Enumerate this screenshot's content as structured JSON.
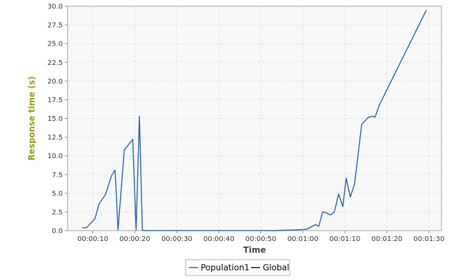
{
  "chart_data": {
    "type": "line",
    "title": "",
    "xlabel": "Time",
    "ylabel": "Response time (s)",
    "x_unit": "seconds",
    "xlim": [
      4,
      93
    ],
    "ylim": [
      0,
      30
    ],
    "y_ticks": [
      "0.0",
      "2.5",
      "5.0",
      "7.5",
      "10.0",
      "12.5",
      "15.0",
      "17.5",
      "20.0",
      "22.5",
      "25.0",
      "27.5",
      "30.0"
    ],
    "x_ticks": [
      {
        "value": 10,
        "label": "00:00:10"
      },
      {
        "value": 20,
        "label": "00:00:20"
      },
      {
        "value": 30,
        "label": "00:00:30"
      },
      {
        "value": 40,
        "label": "00:00:40"
      },
      {
        "value": 50,
        "label": "00:00:50"
      },
      {
        "value": 60,
        "label": "00:01:00"
      },
      {
        "value": 70,
        "label": "00:01:10"
      },
      {
        "value": 80,
        "label": "00:01:20"
      },
      {
        "value": 90,
        "label": "00:01:30"
      }
    ],
    "grid": true,
    "legend_position": "bottom-center",
    "series": [
      {
        "name": "Population1",
        "color": "#1f5fa8",
        "points": [
          [
            7.5,
            0.4
          ],
          [
            8.5,
            0.4
          ],
          [
            10.5,
            1.6
          ],
          [
            11.5,
            3.6
          ],
          [
            13,
            4.8
          ],
          [
            14.5,
            7.4
          ],
          [
            15.3,
            8.1
          ],
          [
            16,
            0.1
          ],
          [
            17.5,
            10.8
          ],
          [
            19.5,
            12.2
          ],
          [
            20.3,
            0.1
          ],
          [
            21.1,
            15.3
          ],
          [
            21.8,
            0.05
          ],
          [
            23,
            0
          ],
          [
            24,
            0.02
          ],
          [
            30,
            0.02
          ],
          [
            40,
            0.02
          ],
          [
            50,
            0.02
          ],
          [
            53,
            0
          ],
          [
            55,
            0.05
          ],
          [
            58,
            0.1
          ],
          [
            60,
            0.15
          ],
          [
            61,
            0.2
          ],
          [
            63,
            0.8
          ],
          [
            63.8,
            0.6
          ],
          [
            64.7,
            2.5
          ],
          [
            65.5,
            2.4
          ],
          [
            66.5,
            2.1
          ],
          [
            67.5,
            2.5
          ],
          [
            68.5,
            4.9
          ],
          [
            69.5,
            3.2
          ],
          [
            70.3,
            7
          ],
          [
            71.3,
            4.5
          ],
          [
            72.3,
            6.2
          ],
          [
            74,
            14.2
          ],
          [
            75.5,
            15.1
          ],
          [
            76.5,
            15.3
          ],
          [
            77.2,
            15.2
          ],
          [
            78.2,
            16.8
          ],
          [
            89.4,
            29.5
          ]
        ]
      },
      {
        "name": "Global",
        "color": "#000000",
        "points": []
      }
    ]
  }
}
